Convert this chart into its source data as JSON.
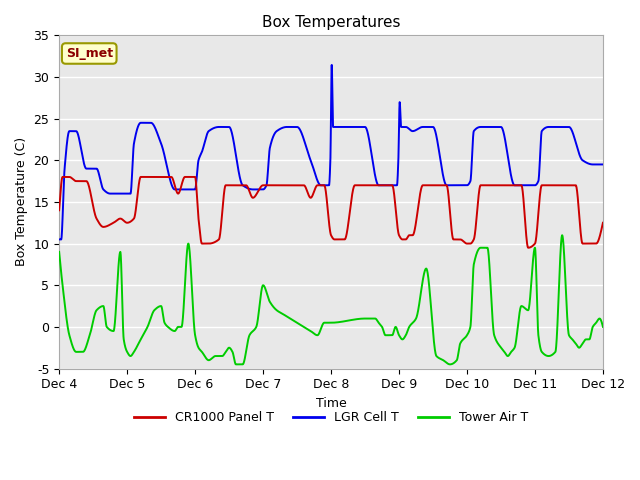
{
  "title": "Box Temperatures",
  "xlabel": "Time",
  "ylabel": "Box Temperature (C)",
  "ylim": [
    -5,
    35
  ],
  "bg_color": "#E8E8E8",
  "x_tick_labels": [
    "Dec 4",
    "Dec 5",
    "Dec 6",
    "Dec 7",
    "Dec 8",
    "Dec 9",
    "Dec 10",
    "Dec 11",
    "Dec 12"
  ],
  "annotation_text": "SI_met",
  "annotation_color": "#8B0000",
  "annotation_bg": "#FFFFCC",
  "annotation_border": "#999900",
  "line_red": "#CC0000",
  "line_blue": "#0000EE",
  "line_green": "#00CC00",
  "legend_labels": [
    "CR1000 Panel T",
    "LGR Cell T",
    "Tower Air T"
  ],
  "yticks": [
    -5,
    0,
    5,
    10,
    15,
    20,
    25,
    30,
    35
  ],
  "red_x": [
    0.0,
    0.05,
    0.15,
    0.25,
    0.4,
    0.55,
    0.65,
    0.8,
    0.9,
    1.0,
    1.1,
    1.2,
    1.3,
    1.45,
    1.55,
    1.65,
    1.75,
    1.85,
    2.0,
    2.05,
    2.1,
    2.2,
    2.35,
    2.45,
    2.55,
    2.65,
    2.75,
    2.85,
    3.0,
    3.1,
    3.2,
    3.3,
    3.4,
    3.5,
    3.6,
    3.7,
    3.8,
    3.9,
    4.0,
    4.05,
    4.1,
    4.2,
    4.35,
    4.5,
    4.6,
    4.7,
    4.8,
    4.9,
    5.0,
    5.05,
    5.1,
    5.15,
    5.2,
    5.35,
    5.5,
    5.6,
    5.7,
    5.8,
    5.9,
    6.0,
    6.05,
    6.1,
    6.2,
    6.35,
    6.5,
    6.6,
    6.7,
    6.8,
    6.9,
    7.0,
    7.1,
    7.2,
    7.3,
    7.4,
    7.5,
    7.6,
    7.7,
    7.8,
    7.9,
    8.0
  ],
  "red_y": [
    14.0,
    18.0,
    18.0,
    17.5,
    17.5,
    13.0,
    12.0,
    12.5,
    13.0,
    12.5,
    13.0,
    18.0,
    18.0,
    18.0,
    18.0,
    18.0,
    16.0,
    18.0,
    18.0,
    13.0,
    10.0,
    10.0,
    10.5,
    17.0,
    17.0,
    17.0,
    17.0,
    15.5,
    17.0,
    17.0,
    17.0,
    17.0,
    17.0,
    17.0,
    17.0,
    15.5,
    17.0,
    17.0,
    11.0,
    10.5,
    10.5,
    10.5,
    17.0,
    17.0,
    17.0,
    17.0,
    17.0,
    17.0,
    11.0,
    10.5,
    10.5,
    11.0,
    11.0,
    17.0,
    17.0,
    17.0,
    17.0,
    10.5,
    10.5,
    10.0,
    10.0,
    10.5,
    17.0,
    17.0,
    17.0,
    17.0,
    17.0,
    17.0,
    9.5,
    10.0,
    17.0,
    17.0,
    17.0,
    17.0,
    17.0,
    17.0,
    10.0,
    10.0,
    10.0,
    12.5
  ],
  "blue_x": [
    0.0,
    0.03,
    0.08,
    0.15,
    0.25,
    0.4,
    0.55,
    0.65,
    0.75,
    0.85,
    1.0,
    1.05,
    1.1,
    1.2,
    1.35,
    1.5,
    1.7,
    1.85,
    2.0,
    2.05,
    2.1,
    2.2,
    2.35,
    2.5,
    2.7,
    2.85,
    3.0,
    3.05,
    3.1,
    3.2,
    3.35,
    3.5,
    3.7,
    3.85,
    3.97,
    3.99,
    4.01,
    4.03,
    4.08,
    4.2,
    4.35,
    4.5,
    4.7,
    4.85,
    4.97,
    4.99,
    5.01,
    5.03,
    5.1,
    5.2,
    5.35,
    5.5,
    5.7,
    5.85,
    6.0,
    6.05,
    6.1,
    6.2,
    6.35,
    6.5,
    6.7,
    6.85,
    7.0,
    7.05,
    7.1,
    7.2,
    7.35,
    7.5,
    7.7,
    7.85,
    8.0
  ],
  "blue_y": [
    10.5,
    10.5,
    19.0,
    23.5,
    23.5,
    19.0,
    19.0,
    16.5,
    16.0,
    16.0,
    16.0,
    16.0,
    22.0,
    24.5,
    24.5,
    22.0,
    16.5,
    16.5,
    16.5,
    20.0,
    21.0,
    23.5,
    24.0,
    24.0,
    17.0,
    16.5,
    16.5,
    17.0,
    21.5,
    23.5,
    24.0,
    24.0,
    20.0,
    17.0,
    17.0,
    20.0,
    31.5,
    24.0,
    24.0,
    24.0,
    24.0,
    24.0,
    17.0,
    17.0,
    17.0,
    20.0,
    27.0,
    24.0,
    24.0,
    23.5,
    24.0,
    24.0,
    17.0,
    17.0,
    17.0,
    17.5,
    23.5,
    24.0,
    24.0,
    24.0,
    17.0,
    17.0,
    17.0,
    17.5,
    23.5,
    24.0,
    24.0,
    24.0,
    20.0,
    19.5,
    19.5
  ],
  "green_x": [
    0.0,
    0.05,
    0.15,
    0.25,
    0.35,
    0.45,
    0.55,
    0.65,
    0.7,
    0.8,
    0.9,
    0.95,
    1.0,
    1.05,
    1.1,
    1.2,
    1.3,
    1.4,
    1.5,
    1.55,
    1.6,
    1.7,
    1.75,
    1.8,
    1.9,
    2.0,
    2.05,
    2.1,
    2.2,
    2.3,
    2.4,
    2.45,
    2.5,
    2.55,
    2.6,
    2.7,
    2.8,
    2.9,
    3.0,
    3.1,
    3.2,
    3.3,
    3.4,
    3.5,
    3.6,
    3.7,
    3.8,
    3.9,
    4.0,
    4.5,
    4.6,
    4.65,
    4.7,
    4.75,
    4.8,
    4.85,
    4.9,
    4.95,
    5.0,
    5.05,
    5.1,
    5.15,
    5.25,
    5.4,
    5.55,
    5.65,
    5.75,
    5.85,
    5.9,
    6.0,
    6.05,
    6.1,
    6.2,
    6.3,
    6.4,
    6.5,
    6.55,
    6.6,
    6.65,
    6.7,
    6.8,
    6.9,
    7.0,
    7.05,
    7.1,
    7.2,
    7.3,
    7.4,
    7.5,
    7.55,
    7.6,
    7.65,
    7.7,
    7.75,
    7.8,
    7.85,
    7.9,
    7.95,
    8.0
  ],
  "green_y": [
    9.0,
    5.0,
    -1.0,
    -3.0,
    -3.0,
    -1.0,
    2.0,
    2.5,
    0.0,
    -0.5,
    9.0,
    -1.5,
    -3.0,
    -3.5,
    -3.0,
    -1.5,
    0.0,
    2.0,
    2.5,
    0.5,
    0.0,
    -0.5,
    0.0,
    0.0,
    10.0,
    -1.0,
    -2.5,
    -3.0,
    -4.0,
    -3.5,
    -3.5,
    -3.0,
    -2.5,
    -3.0,
    -4.5,
    -4.5,
    -1.0,
    0.0,
    5.0,
    3.0,
    2.0,
    1.5,
    1.0,
    0.5,
    0.0,
    -0.5,
    -1.0,
    0.5,
    0.5,
    1.0,
    1.0,
    1.0,
    0.5,
    0.0,
    -1.0,
    -1.0,
    -1.0,
    0.0,
    -1.0,
    -1.5,
    -1.0,
    0.0,
    1.0,
    7.0,
    -3.5,
    -4.0,
    -4.5,
    -4.0,
    -2.0,
    -1.0,
    0.0,
    7.5,
    9.5,
    9.5,
    -1.0,
    -2.5,
    -3.0,
    -3.5,
    -3.0,
    -2.5,
    2.5,
    2.0,
    9.5,
    -1.0,
    -3.0,
    -3.5,
    -3.0,
    11.0,
    -1.0,
    -1.5,
    -2.0,
    -2.5,
    -2.0,
    -1.5,
    -1.5,
    0.0,
    0.5,
    1.0,
    0.0
  ]
}
